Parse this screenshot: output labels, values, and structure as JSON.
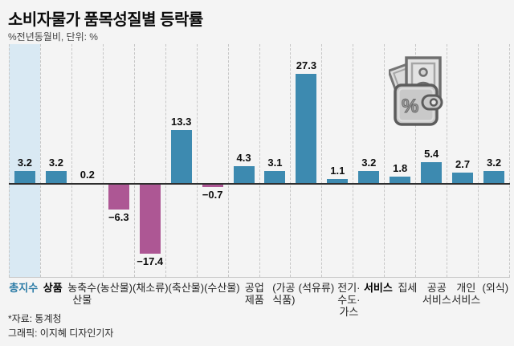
{
  "page": {
    "background": "#f4f4f4"
  },
  "header": {
    "title": "소비자물가 품목성질별 등락률",
    "subtitle": "%전년동월비, 단위: %"
  },
  "chart_data": {
    "type": "bar",
    "unit": "%",
    "title": "소비자물가 품목성질별 등락률",
    "subtitle": "%전년동월비, 단위: %",
    "ylim": [
      -23,
      35
    ],
    "grid": "dashed-column-separators",
    "legend": "none",
    "categories": [
      "총지수",
      "상품",
      "농축수산물",
      "(농산물)",
      "(채소류)",
      "(축산물)",
      "(수산물)",
      "공업제품",
      "(가공식품)",
      "(석유류)",
      "전기·수도·가스",
      "서비스",
      "집세",
      "공공서비스",
      "개인서비스",
      "(외식)"
    ],
    "category_lines": [
      [
        "총지수"
      ],
      [
        "상품"
      ],
      [
        "농축수",
        "산물"
      ],
      [
        "(농산물)"
      ],
      [
        "(채소류)"
      ],
      [
        "(축산물)"
      ],
      [
        "(수산물)"
      ],
      [
        "공업",
        "제품"
      ],
      [
        "(가공",
        "식품)"
      ],
      [
        "(석유류)"
      ],
      [
        "전기·",
        "수도·",
        "가스"
      ],
      [
        "서비스"
      ],
      [
        "집세"
      ],
      [
        "공공",
        "서비스"
      ],
      [
        "개인",
        "서비스"
      ],
      [
        "(외식)"
      ]
    ],
    "category_styles": [
      "total",
      "bold",
      "normal",
      "normal",
      "normal",
      "normal",
      "normal",
      "normal",
      "normal",
      "normal",
      "normal",
      "bold",
      "normal",
      "normal",
      "normal",
      "normal"
    ],
    "values": [
      3.2,
      3.2,
      0.2,
      -6.3,
      -17.4,
      13.3,
      -0.7,
      4.3,
      3.1,
      27.3,
      1.1,
      3.2,
      1.8,
      5.4,
      2.7,
      3.2
    ],
    "value_labels": [
      "3.2",
      "3.2",
      "0.2",
      "−6.3",
      "−17.4",
      "13.3",
      "−0.7",
      "4.3",
      "3.1",
      "27.3",
      "1.1",
      "3.2",
      "1.8",
      "5.4",
      "2.7",
      "3.2"
    ],
    "highlight_index": 0,
    "colors": {
      "positive": "#3d8ab0",
      "negative": "#ad5794",
      "highlight_background": "#d9e9f3",
      "axis": "#2e2e2e",
      "total_label": "#2b7ba6"
    }
  },
  "icon": {
    "name": "wallet-money-icon"
  },
  "footer": {
    "source": "*자료: 통계청",
    "credit": "그래픽: 이지혜 디자인기자"
  }
}
